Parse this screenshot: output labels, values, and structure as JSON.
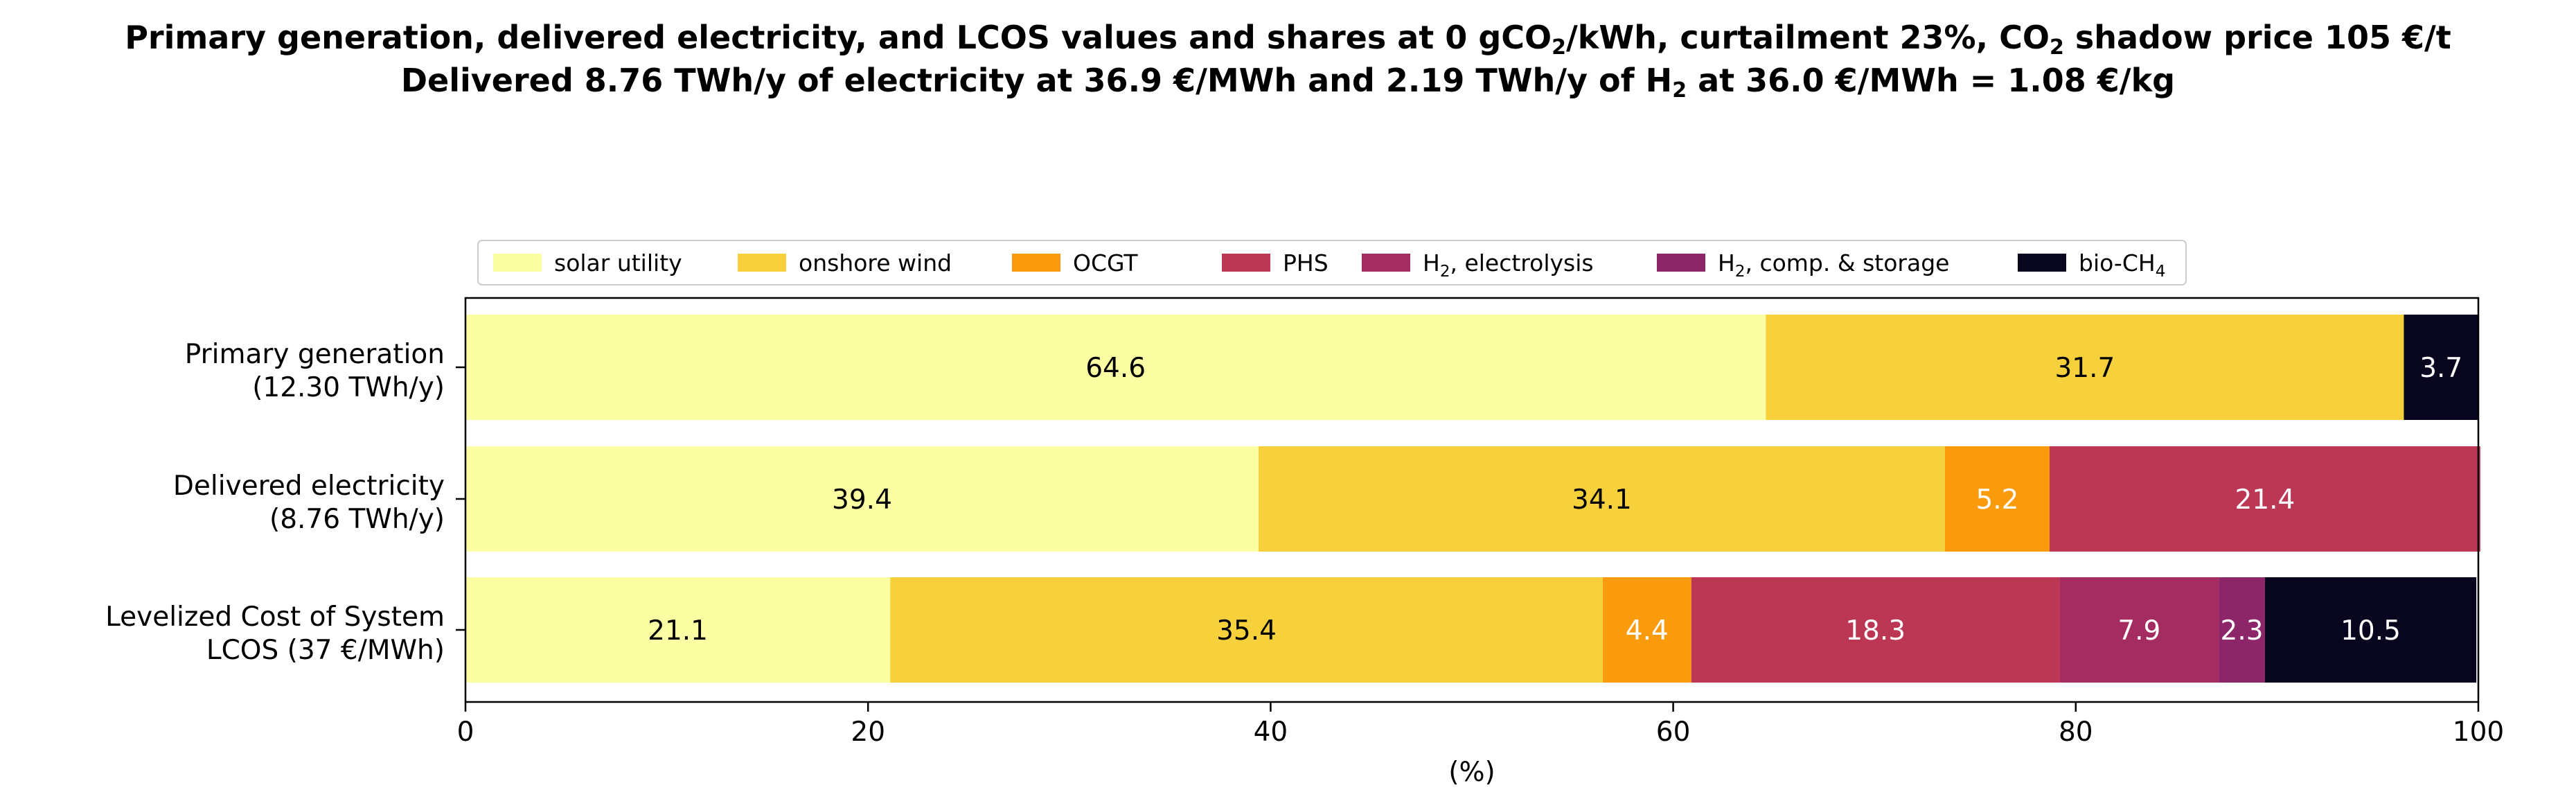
{
  "chart_data": {
    "type": "bar",
    "orientation": "horizontal",
    "stacked": true,
    "title_line1_parts": [
      "Primary generation, delivered electricity, and LCOS values and shares at 0 gCO",
      "2",
      "/kWh, curtailment 23%, CO",
      "2",
      " shadow price 105 €/t"
    ],
    "title_line2_parts": [
      "Delivered 8.76 TWh/y of electricity at 36.9 €/MWh and 2.19 TWh/y of H",
      "2",
      " at 36.0 €/MWh = 1.08 €/kg"
    ],
    "xlabel": "(%)",
    "xlim": [
      0,
      100
    ],
    "xticks": [
      "0",
      "20",
      "40",
      "60",
      "80",
      "100"
    ],
    "grid": false,
    "legend_position": "top-center",
    "categories": [
      [
        "Primary generation",
        "(12.30 TWh/y)"
      ],
      [
        "Delivered electricity",
        "(8.76 TWh/y)"
      ],
      [
        "Levelized Cost of System",
        "LCOS  (37 €/MWh)"
      ]
    ],
    "series": [
      {
        "name": "solar utility",
        "name_sub": "",
        "name_suffix": "",
        "color": "#fcfea4",
        "label_color": "#000000",
        "values": [
          64.6,
          39.4,
          21.1
        ]
      },
      {
        "name": "onshore wind",
        "name_sub": "",
        "name_suffix": "",
        "color": "#f6d13c",
        "label_color": "#000000",
        "values": [
          31.7,
          34.1,
          35.4
        ]
      },
      {
        "name": "OCGT",
        "name_sub": "",
        "name_suffix": "",
        "color": "#fa9a0d",
        "label_color": "#ffffff",
        "values": [
          0,
          5.2,
          4.4
        ]
      },
      {
        "name": "PHS",
        "name_sub": "",
        "name_suffix": "",
        "color": "#bc3754",
        "label_color": "#ffffff",
        "values": [
          0,
          21.4,
          18.3
        ]
      },
      {
        "name": "H",
        "name_sub": "2",
        "name_suffix": ", electrolysis",
        "color": "#a52c60",
        "label_color": "#ffffff",
        "values": [
          0,
          0,
          7.9
        ]
      },
      {
        "name": "H",
        "name_sub": "2",
        "name_suffix": ", comp. & storage",
        "color": "#8c2669",
        "label_color": "#ffffff",
        "values": [
          0,
          0,
          2.3
        ]
      },
      {
        "name": "bio-CH",
        "name_sub": "4",
        "name_suffix": "",
        "color": "#08061e",
        "label_color": "#ffffff",
        "values": [
          3.7,
          0,
          10.5
        ]
      }
    ]
  }
}
